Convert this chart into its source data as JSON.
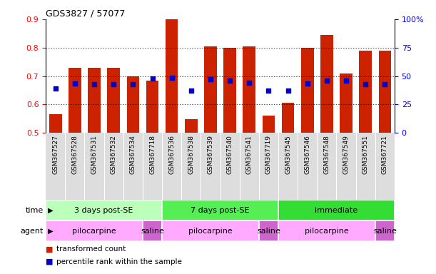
{
  "title": "GDS3827 / 57077",
  "samples": [
    "GSM367527",
    "GSM367528",
    "GSM367531",
    "GSM367532",
    "GSM367534",
    "GSM367718",
    "GSM367536",
    "GSM367538",
    "GSM367539",
    "GSM367540",
    "GSM367541",
    "GSM367719",
    "GSM367545",
    "GSM367546",
    "GSM367548",
    "GSM367549",
    "GSM367551",
    "GSM367721"
  ],
  "red_values": [
    0.565,
    0.73,
    0.73,
    0.73,
    0.7,
    0.685,
    0.9,
    0.548,
    0.805,
    0.8,
    0.805,
    0.56,
    0.605,
    0.8,
    0.845,
    0.71,
    0.79,
    0.79
  ],
  "blue_values": [
    0.655,
    0.675,
    0.672,
    0.672,
    0.672,
    0.692,
    0.695,
    0.648,
    0.69,
    0.683,
    0.676,
    0.648,
    0.648,
    0.675,
    0.683,
    0.683,
    0.672,
    0.672
  ],
  "ymin": 0.5,
  "ymax": 0.9,
  "yticks_left": [
    0.5,
    0.6,
    0.7,
    0.8,
    0.9
  ],
  "yticks_right_vals": [
    0,
    25,
    50,
    75,
    100
  ],
  "bar_color": "#cc2200",
  "blue_color": "#0000cc",
  "time_groups": [
    {
      "label": "3 days post-SE",
      "start": 0,
      "end": 5,
      "color": "#bbffbb"
    },
    {
      "label": "7 days post-SE",
      "start": 6,
      "end": 11,
      "color": "#55ee55"
    },
    {
      "label": "immediate",
      "start": 12,
      "end": 17,
      "color": "#33dd33"
    }
  ],
  "agent_groups": [
    {
      "label": "pilocarpine",
      "start": 0,
      "end": 4,
      "color": "#ffaaff"
    },
    {
      "label": "saline",
      "start": 5,
      "end": 5,
      "color": "#cc66cc"
    },
    {
      "label": "pilocarpine",
      "start": 6,
      "end": 10,
      "color": "#ffaaff"
    },
    {
      "label": "saline",
      "start": 11,
      "end": 11,
      "color": "#cc66cc"
    },
    {
      "label": "pilocarpine",
      "start": 12,
      "end": 16,
      "color": "#ffaaff"
    },
    {
      "label": "saline",
      "start": 17,
      "end": 17,
      "color": "#cc66cc"
    }
  ],
  "time_label": "time",
  "agent_label": "agent",
  "legend_red": "transformed count",
  "legend_blue": "percentile rank within the sample",
  "bar_width": 0.65,
  "xlabel_bg": "#dddddd"
}
